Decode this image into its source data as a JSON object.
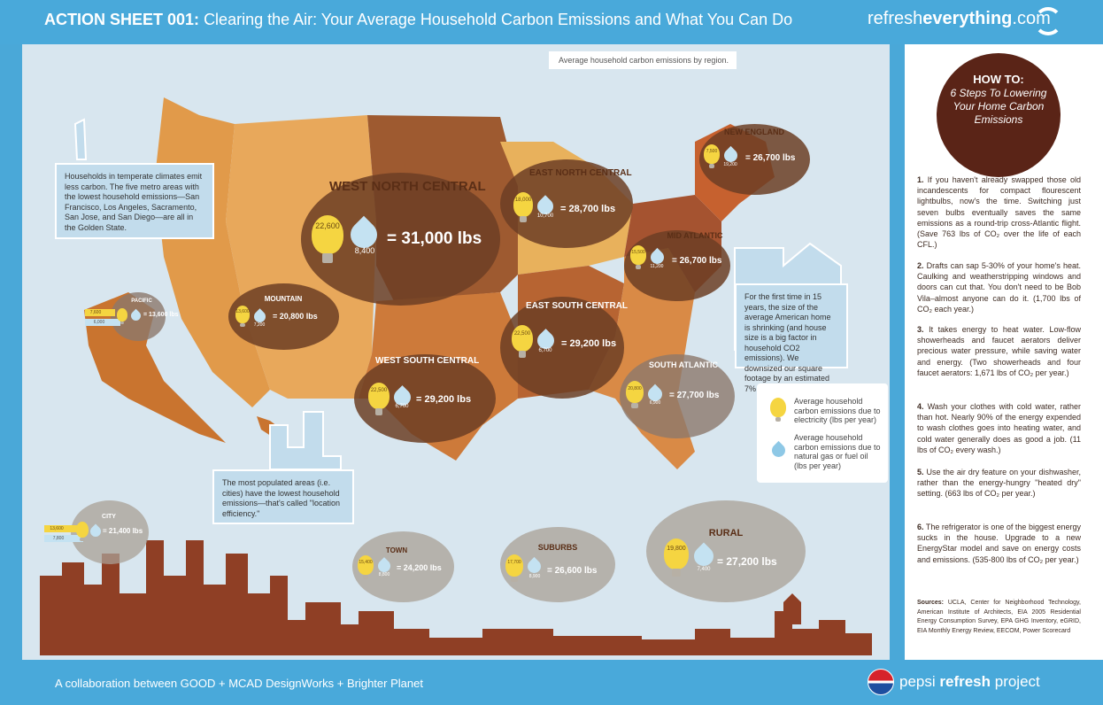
{
  "header": {
    "action": "ACTION SHEET 001:",
    "title": "Clearing the Air: Your Average Household Carbon Emissions and What You Can Do",
    "brand_plain": "refresh",
    "brand_bold": "everything",
    "brand_suffix": ".com"
  },
  "caption": "Average household carbon emissions by region.",
  "regions": {
    "west_north_central": {
      "name": "WEST NORTH CENTRAL",
      "electric": "22,600",
      "fuel": "8,400",
      "total": "= 31,000 lbs"
    },
    "east_north_central": {
      "name": "EAST NORTH CENTRAL",
      "electric": "18,000",
      "fuel": "10,700",
      "total": "= 28,700 lbs"
    },
    "new_england": {
      "name": "NEW ENGLAND",
      "electric": "7,500",
      "fuel": "19,200",
      "total": "= 26,700 lbs"
    },
    "mid_atlantic": {
      "name": "MID ATLANTIC",
      "electric": "15,500",
      "fuel": "11,200",
      "total": "= 26,700 lbs"
    },
    "mountain": {
      "name": "MOUNTAIN",
      "electric": "13,600",
      "fuel": "7,200",
      "total": "= 20,800 lbs"
    },
    "pacific": {
      "name": "PACIFIC",
      "electric": "7,600",
      "fuel": "6,000",
      "total": "= 13,600 lbs"
    },
    "east_south_central": {
      "name": "EAST SOUTH CENTRAL",
      "electric": "22,500",
      "fuel": "6,700",
      "total": "= 29,200 lbs"
    },
    "west_south_central": {
      "name": "WEST SOUTH CENTRAL",
      "electric": "22,500",
      "fuel": "6,700",
      "total": "= 29,200 lbs"
    },
    "south_atlantic": {
      "name": "SOUTH ATLANTIC",
      "electric": "20,800",
      "fuel": "6,900",
      "total": "= 27,700 lbs"
    },
    "city": {
      "name": "CITY",
      "electric": "13,600",
      "fuel": "7,800",
      "total": "= 21,400 lbs"
    },
    "town": {
      "name": "TOWN",
      "electric": "15,400",
      "fuel": "8,800",
      "total": "= 24,200 lbs"
    },
    "suburbs": {
      "name": "SUBURBS",
      "electric": "17,700",
      "fuel": "8,900",
      "total": "= 26,600 lbs"
    },
    "rural": {
      "name": "RURAL",
      "electric": "19,800",
      "fuel": "7,400",
      "total": "= 27,200 lbs"
    }
  },
  "notes": {
    "temperate": "Households in temperate climates emit less carbon. The five metro areas with the lowest household emissions—San Francisco, Los Angeles, Sacramento, San Jose, and San Diego—are all in the Golden State.",
    "house_size": "For the first time in 15 years, the size of the average American home is shrinking (and house size is a big factor in household CO2 emissions). We downsized our square footage by an estimated 7% in 2009.",
    "location": "The most populated areas (i.e. cities) have the lowest household emissions—that's called \"location efficiency.\""
  },
  "legend": {
    "electric": "Average household carbon emissions due to electricity (lbs per year)",
    "fuel": "Average household carbon emissions due to natural gas or fuel oil (lbs per year)"
  },
  "howto": {
    "title": "HOW TO:",
    "subtitle": "6 Steps To Lowering Your Home Carbon Emissions"
  },
  "steps": [
    {
      "num": "1.",
      "text": "If you haven't already swapped those old incandescents for compact flourescent lightbulbs, now's the time. Switching just seven bulbs eventually saves the same emissions as a round-trip cross-Atlantic flight. (Save 763 lbs of CO₂ over the life of each CFL.)"
    },
    {
      "num": "2.",
      "text": "Drafts can sap 5-30% of your home's heat. Caulking and weatherstripping windows and doors can cut that. You don't need to be Bob Vila–almost anyone can do it. (1,700 lbs of CO₂ each year.)"
    },
    {
      "num": "3.",
      "text": "It takes energy to heat water. Low-flow showerheads and faucet aerators deliver precious water pressure, while saving water and energy. (Two showerheads and four faucet aerators: 1,671 lbs of CO₂ per year.)"
    },
    {
      "num": "4.",
      "text": "Wash your clothes with cold water, rather than hot. Nearly 90% of the energy expended to wash clothes goes into heating water, and cold water generally does as good a job. (11 lbs of CO₂ every wash.)"
    },
    {
      "num": "5.",
      "text": "Use the air dry feature on your dishwasher, rather than the energy-hungry \"heated dry\" setting. (663 lbs of CO₂ per year.)"
    },
    {
      "num": "6.",
      "text": "The refrigerator is one of the biggest energy sucks in the house. Upgrade to a new EnergyStar model and save on energy costs and emissions. (535-800 lbs of CO₂ per year.)"
    }
  ],
  "sources": {
    "label": "Sources:",
    "text": "UCLA, Center for Neighborhood Technology, American Institute of Architects, EIA 2005 Residential Energy Consumption Survey, EPA GHG Inventory, eGRID, EIA Monthly Energy Review, EECOM, Power Scorecard"
  },
  "footer": {
    "collab": "A collaboration between GOOD + MCAD DesignWorks + Brighter Planet",
    "pepsi_plain": "pepsi ",
    "pepsi_bold": "refresh",
    "pepsi_suffix": " project"
  },
  "colors": {
    "sky": "#49a9da",
    "bubble_brown": "#6c3e24",
    "howto_brown": "#5a2417",
    "bulb_yellow": "#f5d541",
    "drop_blue": "#c4e2f2",
    "skyline": "#8f3f25"
  }
}
